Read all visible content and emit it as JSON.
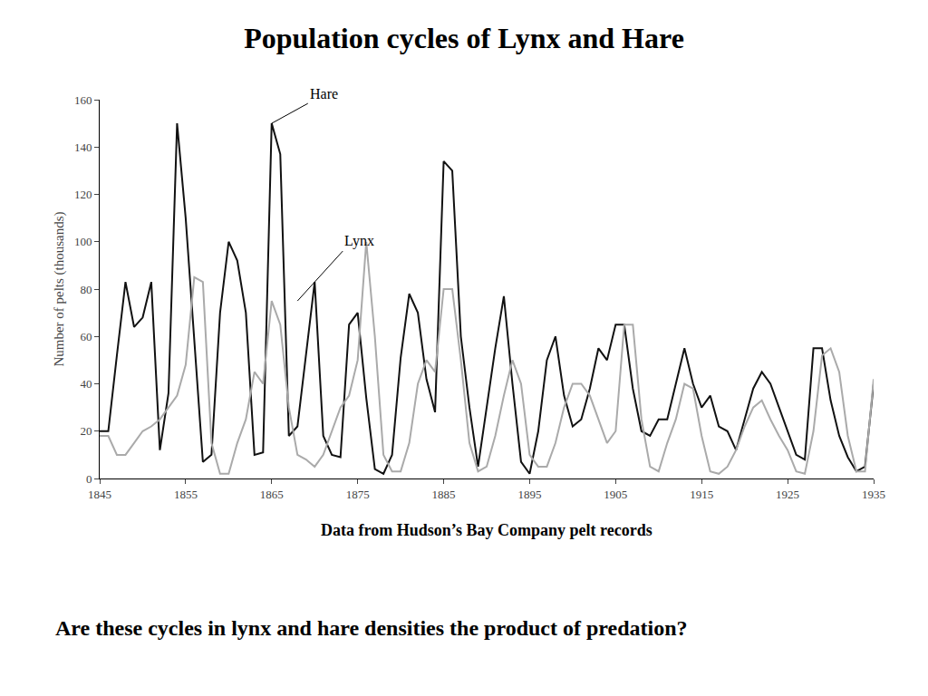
{
  "chart_data": {
    "type": "line",
    "title": "Population cycles of Lynx and Hare",
    "subtitle": "Data from Hudson’s Bay Company pelt records",
    "ylabel": "Number of pelts (thousands)",
    "x": [
      1845,
      1846,
      1847,
      1848,
      1849,
      1850,
      1851,
      1852,
      1853,
      1854,
      1855,
      1856,
      1857,
      1858,
      1859,
      1860,
      1861,
      1862,
      1863,
      1864,
      1865,
      1866,
      1867,
      1868,
      1869,
      1870,
      1871,
      1872,
      1873,
      1874,
      1875,
      1876,
      1877,
      1878,
      1879,
      1880,
      1881,
      1882,
      1883,
      1884,
      1885,
      1886,
      1887,
      1888,
      1889,
      1890,
      1891,
      1892,
      1893,
      1894,
      1895,
      1896,
      1897,
      1898,
      1899,
      1900,
      1901,
      1902,
      1903,
      1904,
      1905,
      1906,
      1907,
      1908,
      1909,
      1910,
      1911,
      1912,
      1913,
      1914,
      1915,
      1916,
      1917,
      1918,
      1919,
      1920,
      1921,
      1922,
      1923,
      1924,
      1925,
      1926,
      1927,
      1928,
      1929,
      1930,
      1931,
      1932,
      1933,
      1934,
      1935
    ],
    "series": [
      {
        "color": "#111111",
        "values": [
          20,
          20,
          52,
          83,
          64,
          68,
          83,
          12,
          36,
          150,
          110,
          60,
          7,
          10,
          70,
          100,
          92,
          70,
          10,
          11,
          150,
          137,
          18,
          22,
          52,
          83,
          18,
          10,
          9,
          65,
          70,
          34,
          4,
          2,
          10,
          51,
          78,
          70,
          42,
          28,
          134,
          130,
          60,
          30,
          5,
          30,
          55,
          77,
          40,
          7,
          2,
          20,
          50,
          60,
          35,
          22,
          25,
          38,
          55,
          50,
          65,
          65,
          38,
          20,
          18,
          25,
          25,
          40,
          55,
          40,
          30,
          35,
          22,
          20,
          12,
          25,
          38,
          45,
          40,
          30,
          20,
          10,
          8,
          55,
          55,
          33,
          18,
          9,
          3,
          5,
          40
        ]
      },
      {
        "color": "#aaaaaa",
        "values": [
          18,
          18,
          10,
          10,
          15,
          20,
          22,
          25,
          30,
          35,
          48,
          85,
          83,
          15,
          2,
          2,
          15,
          25,
          45,
          40,
          75,
          65,
          30,
          10,
          8,
          5,
          10,
          20,
          30,
          35,
          50,
          100,
          60,
          10,
          3,
          3,
          15,
          40,
          50,
          45,
          80,
          80,
          50,
          15,
          3,
          5,
          18,
          35,
          50,
          40,
          10,
          5,
          5,
          15,
          30,
          40,
          40,
          35,
          25,
          15,
          20,
          65,
          65,
          25,
          5,
          3,
          15,
          25,
          40,
          38,
          18,
          3,
          2,
          5,
          12,
          22,
          30,
          33,
          25,
          18,
          12,
          3,
          2,
          20,
          52,
          55,
          45,
          18,
          3,
          3,
          42
        ]
      }
    ],
    "xlim": [
      1845,
      1935
    ],
    "ylim": [
      0,
      160
    ],
    "xticks": [
      1845,
      1855,
      1865,
      1875,
      1885,
      1895,
      1905,
      1915,
      1925,
      1935
    ],
    "yticks": [
      0,
      20,
      40,
      60,
      80,
      100,
      120,
      140,
      160
    ],
    "grid": false,
    "annotations": [
      {
        "text": "Hare",
        "x": 1865,
        "y": 150
      },
      {
        "text": "Lynx",
        "x": 1868,
        "y": 75
      },
      {
        "text": "Are these cycles in lynx and hare densities the product of predation?"
      }
    ]
  }
}
